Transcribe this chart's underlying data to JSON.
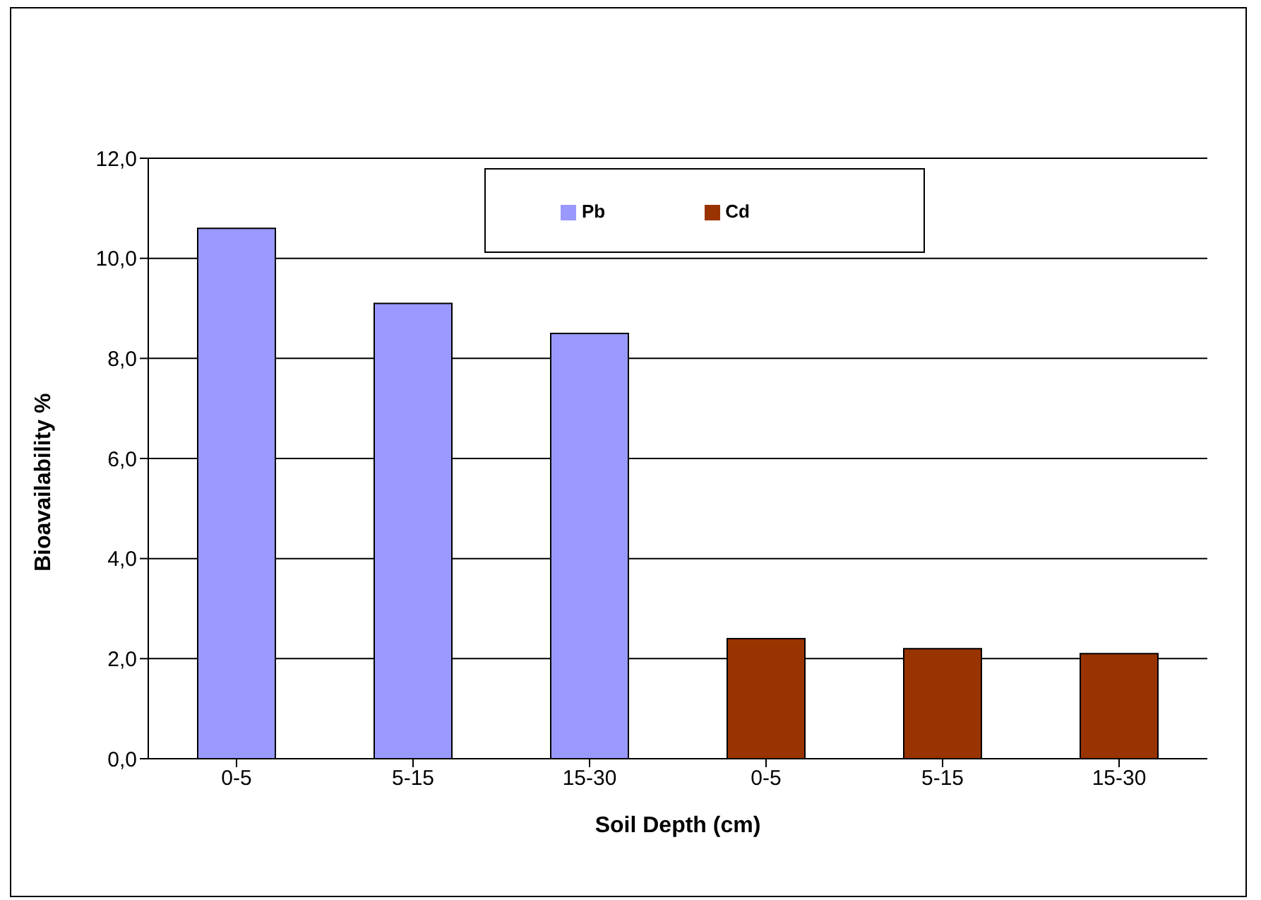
{
  "chart_data": {
    "type": "bar",
    "xlabel": "Soil Depth (cm)",
    "ylabel": "Bioavailability %",
    "categories": [
      "0-5",
      "5-15",
      "15-30",
      "0-5",
      "5-15",
      "15-30"
    ],
    "stacked": true,
    "series": [
      {
        "name": "Pb",
        "color": "#9999ff",
        "values": [
          10.6,
          9.1,
          8.5,
          null,
          null,
          null
        ]
      },
      {
        "name": "Cd",
        "color": "#993300",
        "values": [
          null,
          null,
          null,
          2.4,
          2.2,
          2.1
        ]
      }
    ],
    "ylim": [
      0,
      12
    ],
    "yticks": [
      {
        "value": 0,
        "label": "0,0"
      },
      {
        "value": 2,
        "label": "2,0"
      },
      {
        "value": 4,
        "label": "4,0"
      },
      {
        "value": 6,
        "label": "6,0"
      },
      {
        "value": 8,
        "label": "8,0"
      },
      {
        "value": 10,
        "label": "10,0"
      },
      {
        "value": 12,
        "label": "12,0"
      }
    ],
    "grid": "y",
    "legend": "top"
  }
}
